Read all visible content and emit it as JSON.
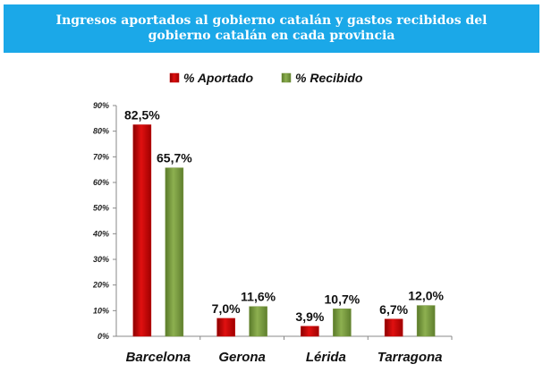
{
  "title_line1": "Ingresos aportados al gobierno catalán y gastos recibidos del",
  "title_line2": "gobierno catalán en cada provincia",
  "colors": {
    "banner": "#1ba8e8",
    "aportado": "#c00000",
    "recibido": "#76923c"
  },
  "chart_data": {
    "type": "bar",
    "title": "Ingresos aportados al gobierno catalán y gastos recibidos del gobierno catalán en cada provincia",
    "categories": [
      "Barcelona",
      "Gerona",
      "Lérida",
      "Tarragona"
    ],
    "series": [
      {
        "name": "% Aportado",
        "values": [
          82.5,
          7.0,
          3.9,
          6.7
        ],
        "labels": [
          "82,5%",
          "7,0%",
          "3,9%",
          "6,7%"
        ]
      },
      {
        "name": "% Recibido",
        "values": [
          65.7,
          11.6,
          10.7,
          12.0
        ],
        "labels": [
          "65,7%",
          "11,6%",
          "10,7%",
          "12,0%"
        ]
      }
    ],
    "yticks": [
      0,
      10,
      20,
      30,
      40,
      50,
      60,
      70,
      80,
      90
    ],
    "ytick_labels": [
      "0%",
      "10%",
      "20%",
      "30%",
      "40%",
      "50%",
      "60%",
      "70%",
      "80%",
      "90%"
    ],
    "ylim": [
      0,
      90
    ],
    "legend_position": "top-center",
    "xlabel": "",
    "ylabel": ""
  }
}
